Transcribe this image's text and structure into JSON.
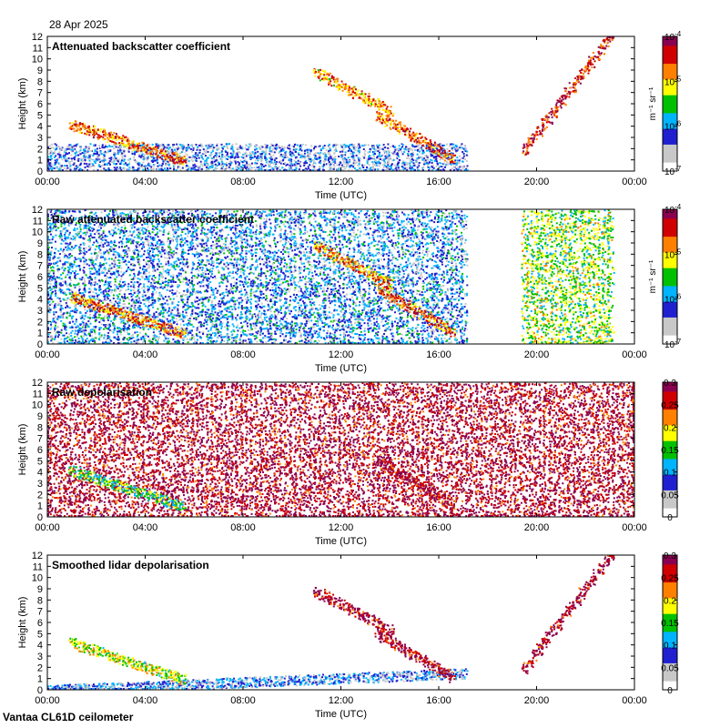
{
  "header": {
    "date": "28 Apr 2025"
  },
  "footer": {
    "instrument": "Vantaa CL61D ceilometer"
  },
  "chart_data": [
    {
      "type": "heatmap",
      "title": "Attenuated backscatter coefficient",
      "xlabel": "Time (UTC)",
      "ylabel": "Height (km)",
      "x_ticks": [
        "00:00",
        "04:00",
        "08:00",
        "12:00",
        "16:00",
        "20:00",
        "00:00"
      ],
      "y_ticks": [
        0,
        1,
        2,
        3,
        4,
        5,
        6,
        7,
        8,
        9,
        10,
        11,
        12
      ],
      "ylim": [
        0,
        12
      ],
      "colorbar": {
        "scale": "log",
        "range": [
          1e-07,
          0.0001
        ],
        "tick_labels": [
          "10-7",
          "10-6",
          "10-5",
          "10-4"
        ],
        "unit": "m-1 sr-1"
      },
      "colormap": [
        "#ffffff",
        "#c8c8c8",
        "#2020d0",
        "#00b4ff",
        "#00c000",
        "#ffff00",
        "#ff8000",
        "#d00000",
        "#8b0050"
      ],
      "features": [
        {
          "name": "boundary layer",
          "start_h": 0.0,
          "end_h": 17.0,
          "height_km": [
            0,
            2.5
          ],
          "level": 0.22
        },
        {
          "name": "descending cloud",
          "start_h": 1.0,
          "end_h": 5.5,
          "height_km": [
            4.2,
            1.0
          ],
          "level": 0.78
        },
        {
          "name": "mid-level cloud",
          "start_h": 11.0,
          "end_h": 14.0,
          "height_km": [
            8.8,
            5.4
          ],
          "level": 0.72
        },
        {
          "name": "lower cloud",
          "start_h": 13.5,
          "end_h": 16.5,
          "height_km": [
            5.0,
            1.2
          ],
          "level": 0.8
        },
        {
          "name": "noise",
          "start_h": 19.5,
          "end_h": 23.0,
          "height_km": [
            2,
            12
          ],
          "level": 0.88
        }
      ]
    },
    {
      "type": "heatmap",
      "title": "Raw attenuated backscatter coefficient",
      "xlabel": "Time (UTC)",
      "ylabel": "Height (km)",
      "x_ticks": [
        "00:00",
        "04:00",
        "08:00",
        "12:00",
        "16:00",
        "20:00",
        "00:00"
      ],
      "y_ticks": [
        0,
        1,
        2,
        3,
        4,
        5,
        6,
        7,
        8,
        9,
        10,
        11,
        12
      ],
      "ylim": [
        0,
        12
      ],
      "colorbar": {
        "scale": "log",
        "range": [
          1e-07,
          0.0001
        ],
        "tick_labels": [
          "10-7",
          "10-6",
          "10-5",
          "10-4"
        ],
        "unit": "m-1 sr-1"
      },
      "colormap": [
        "#ffffff",
        "#c8c8c8",
        "#2020d0",
        "#00b4ff",
        "#00c000",
        "#ffff00",
        "#ff8000",
        "#d00000",
        "#8b0050"
      ],
      "features": [
        {
          "name": "background noise",
          "start_h": 0.0,
          "end_h": 17.0,
          "height_km": [
            0,
            12
          ],
          "level": 0.3
        },
        {
          "name": "descending cloud",
          "start_h": 1.0,
          "end_h": 5.5,
          "height_km": [
            4.2,
            1.0
          ],
          "level": 0.78
        },
        {
          "name": "mid-level cloud",
          "start_h": 11.0,
          "end_h": 14.0,
          "height_km": [
            8.8,
            5.4
          ],
          "level": 0.72
        },
        {
          "name": "lower cloud",
          "start_h": 13.5,
          "end_h": 16.5,
          "height_km": [
            5.0,
            1.2
          ],
          "level": 0.8
        },
        {
          "name": "noise",
          "start_h": 19.5,
          "end_h": 23.0,
          "height_km": [
            0,
            12
          ],
          "level": 0.55
        }
      ]
    },
    {
      "type": "heatmap",
      "title": "Raw depolarisation",
      "xlabel": "Time (UTC)",
      "ylabel": "Height (km)",
      "x_ticks": [
        "00:00",
        "04:00",
        "08:00",
        "12:00",
        "16:00",
        "20:00",
        "00:00"
      ],
      "y_ticks": [
        0,
        1,
        2,
        3,
        4,
        5,
        6,
        7,
        8,
        9,
        10,
        11,
        12
      ],
      "ylim": [
        0,
        12
      ],
      "colorbar": {
        "scale": "linear",
        "range": [
          0,
          0.3
        ],
        "tick_labels": [
          "0",
          "0.05",
          "0.1",
          "0.15",
          "0.2",
          "0.25",
          "0.3"
        ],
        "unit": ""
      },
      "colormap": [
        "#ffffff",
        "#c8c8c8",
        "#2020d0",
        "#00b4ff",
        "#00c000",
        "#ffff00",
        "#ff8000",
        "#d00000",
        "#8b0050"
      ],
      "features": [
        {
          "name": "noise",
          "start_h": 0.0,
          "end_h": 24.0,
          "height_km": [
            0,
            12
          ],
          "level": 0.95
        },
        {
          "name": "descending cloud",
          "start_h": 1.0,
          "end_h": 5.5,
          "height_km": [
            4.2,
            1.0
          ],
          "level": 0.5
        },
        {
          "name": "lower cloud",
          "start_h": 13.5,
          "end_h": 16.5,
          "height_km": [
            5.0,
            1.2
          ],
          "level": 0.95
        }
      ]
    },
    {
      "type": "heatmap",
      "title": "Smoothed lidar depolarisation",
      "xlabel": "Time (UTC)",
      "ylabel": "Height (km)",
      "x_ticks": [
        "00:00",
        "04:00",
        "08:00",
        "12:00",
        "16:00",
        "20:00",
        "00:00"
      ],
      "y_ticks": [
        0,
        1,
        2,
        3,
        4,
        5,
        6,
        7,
        8,
        9,
        10,
        11,
        12
      ],
      "ylim": [
        0,
        12
      ],
      "colorbar": {
        "scale": "linear",
        "range": [
          0,
          0.3
        ],
        "tick_labels": [
          "0",
          "0.05",
          "0.1",
          "0.15",
          "0.2",
          "0.25",
          "0.3"
        ],
        "unit": ""
      },
      "colormap": [
        "#ffffff",
        "#c8c8c8",
        "#2020d0",
        "#00b4ff",
        "#00c000",
        "#ffff00",
        "#ff8000",
        "#d00000",
        "#8b0050"
      ],
      "features": [
        {
          "name": "boundary layer",
          "start_h": 0.0,
          "end_h": 17.0,
          "height_km": [
            0,
            1.5
          ],
          "level": 0.25
        },
        {
          "name": "descending cloud",
          "start_h": 1.0,
          "end_h": 5.5,
          "height_km": [
            4.2,
            1.0
          ],
          "level": 0.6
        },
        {
          "name": "mid-level cloud",
          "start_h": 11.0,
          "end_h": 14.0,
          "height_km": [
            8.8,
            5.4
          ],
          "level": 0.95
        },
        {
          "name": "lower cloud",
          "start_h": 13.5,
          "end_h": 16.5,
          "height_km": [
            5.0,
            1.2
          ],
          "level": 0.95
        },
        {
          "name": "noise",
          "start_h": 19.5,
          "end_h": 23.0,
          "height_km": [
            2,
            12
          ],
          "level": 0.95
        }
      ]
    }
  ]
}
